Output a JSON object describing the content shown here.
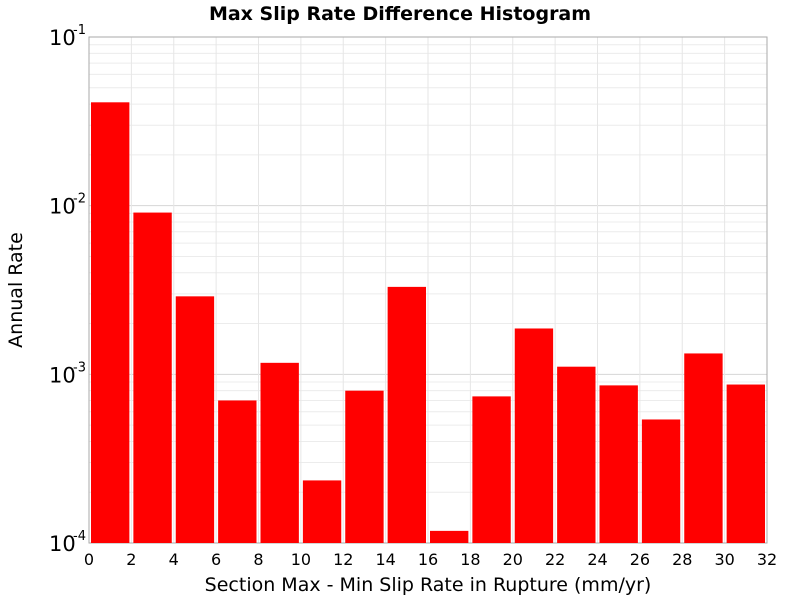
{
  "chart_data": {
    "type": "bar",
    "title": "Max Slip Rate Difference Histogram",
    "xlabel": "Section Max - Min Slip Rate in Rupture (mm/yr)",
    "ylabel": "Annual Rate",
    "yscale": "log",
    "xlim": [
      0,
      32
    ],
    "ylim": [
      0.0001,
      0.1
    ],
    "bar_color": "#ff0000",
    "grid": true,
    "x_ticks": [
      "0",
      "2",
      "4",
      "6",
      "8",
      "10",
      "12",
      "14",
      "16",
      "18",
      "20",
      "22",
      "24",
      "26",
      "28",
      "30",
      "32"
    ],
    "y_ticks": [
      {
        "base": "10",
        "exp": "-4"
      },
      {
        "base": "10",
        "exp": "-3"
      },
      {
        "base": "10",
        "exp": "-2"
      },
      {
        "base": "10",
        "exp": "-1"
      }
    ],
    "bins": [
      {
        "x_start": 0,
        "x_end": 2,
        "value": 0.041
      },
      {
        "x_start": 2,
        "x_end": 4,
        "value": 0.0091
      },
      {
        "x_start": 4,
        "x_end": 6,
        "value": 0.0029
      },
      {
        "x_start": 6,
        "x_end": 8,
        "value": 0.0007
      },
      {
        "x_start": 8,
        "x_end": 10,
        "value": 0.00117
      },
      {
        "x_start": 10,
        "x_end": 12,
        "value": 0.000235
      },
      {
        "x_start": 12,
        "x_end": 14,
        "value": 0.0008
      },
      {
        "x_start": 14,
        "x_end": 16,
        "value": 0.0033
      },
      {
        "x_start": 16,
        "x_end": 18,
        "value": 0.000118
      },
      {
        "x_start": 18,
        "x_end": 20,
        "value": 0.00074
      },
      {
        "x_start": 20,
        "x_end": 22,
        "value": 0.00187
      },
      {
        "x_start": 22,
        "x_end": 24,
        "value": 0.00111
      },
      {
        "x_start": 24,
        "x_end": 26,
        "value": 0.00086
      },
      {
        "x_start": 26,
        "x_end": 28,
        "value": 0.00054
      },
      {
        "x_start": 28,
        "x_end": 30,
        "value": 0.00133
      },
      {
        "x_start": 30,
        "x_end": 32,
        "value": 0.00087
      }
    ]
  }
}
